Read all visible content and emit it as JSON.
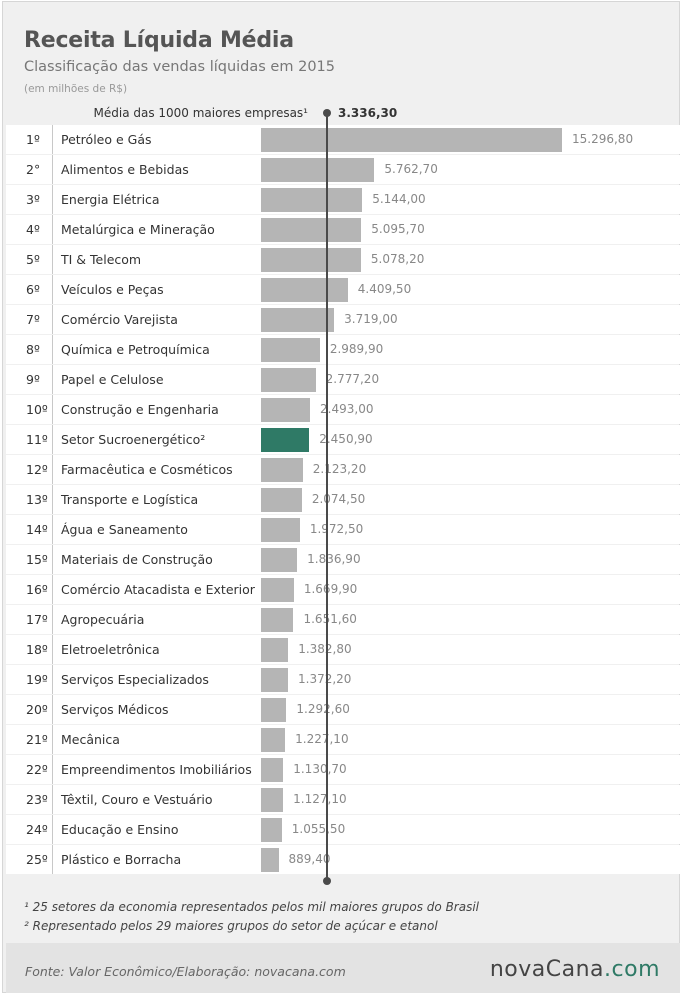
{
  "header": {
    "title": "Receita Líquida Média",
    "subtitle": "Classificação das vendas líquidas em 2015",
    "unit": "(em milhões de R$)",
    "average_label": "Média das 1000 maiores empresas¹",
    "average_value": "3.336,30"
  },
  "chart_data": {
    "type": "bar",
    "orientation": "horizontal",
    "title": "Receita Líquida Média",
    "subtitle": "Classificação das vendas líquidas em 2015",
    "unit": "(em milhões de R$)",
    "reference_line": {
      "label": "Média das 1000 maiores empresas¹",
      "value": 3336.3
    },
    "highlight_index": 10,
    "ranks": [
      "1º",
      "2°",
      "3º",
      "4º",
      "5º",
      "6º",
      "7º",
      "8º",
      "9º",
      "10º",
      "11º",
      "12º",
      "13º",
      "14º",
      "15º",
      "16º",
      "17º",
      "18º",
      "19º",
      "20º",
      "21º",
      "22º",
      "23º",
      "24º",
      "25º"
    ],
    "categories": [
      "Petróleo e Gás",
      "Alimentos e Bebidas",
      "Energia Elétrica",
      "Metalúrgica e Mineração",
      "TI & Telecom",
      "Veículos e Peças",
      "Comércio Varejista",
      "Química e Petroquímica",
      "Papel e Celulose",
      "Construção e Engenharia",
      "Setor Sucroenergético²",
      "Farmacêutica e Cosméticos",
      "Transporte e Logística",
      "Água e Saneamento",
      "Materiais de Construção",
      "Comércio Atacadista e Exterior",
      "Agropecuária",
      "Eletroeletrônica",
      "Serviços Especializados",
      "Serviços Médicos",
      "Mecânica",
      "Empreendimentos Imobiliários",
      "Têxtil, Couro e Vestuário",
      "Educação e Ensino",
      "Plástico e Borracha"
    ],
    "values": [
      15296.8,
      5762.7,
      5144.0,
      5095.7,
      5078.2,
      4409.5,
      3719.0,
      2989.9,
      2777.2,
      2493.0,
      2450.9,
      2123.2,
      2074.5,
      1972.5,
      1836.9,
      1669.9,
      1651.6,
      1382.8,
      1372.2,
      1292.6,
      1227.1,
      1130.7,
      1127.1,
      1055.5,
      889.4
    ],
    "value_labels": [
      "15.296,80",
      "5.762,70",
      "5.144,00",
      "5.095,70",
      "5.078,20",
      "4.409,50",
      "3.719,00",
      "2.989,90",
      "2.777,20",
      "2.493,00",
      "2.450,90",
      "2.123,20",
      "2.074,50",
      "1.972,50",
      "1.836,90",
      "1.669,90",
      "1.651,60",
      "1.382,80",
      "1.372,20",
      "1.292,60",
      "1.227,10",
      "1.130,70",
      "1.127,10",
      "1.055,50",
      "889,40"
    ],
    "colors": {
      "bar": "#b5b5b5",
      "highlight": "#2f7a66",
      "reference_line": "#4a4a4a"
    }
  },
  "notes": [
    "¹ 25 setores da economia representados pelos mil maiores grupos do Brasil",
    "² Representado pelos 29 maiores grupos do setor de açúcar e etanol"
  ],
  "footer": {
    "source": "Fonte:  Valor  Econômico/Elaboração: novacana.com",
    "logo_main": "novaCana",
    "logo_dot": ".com"
  }
}
